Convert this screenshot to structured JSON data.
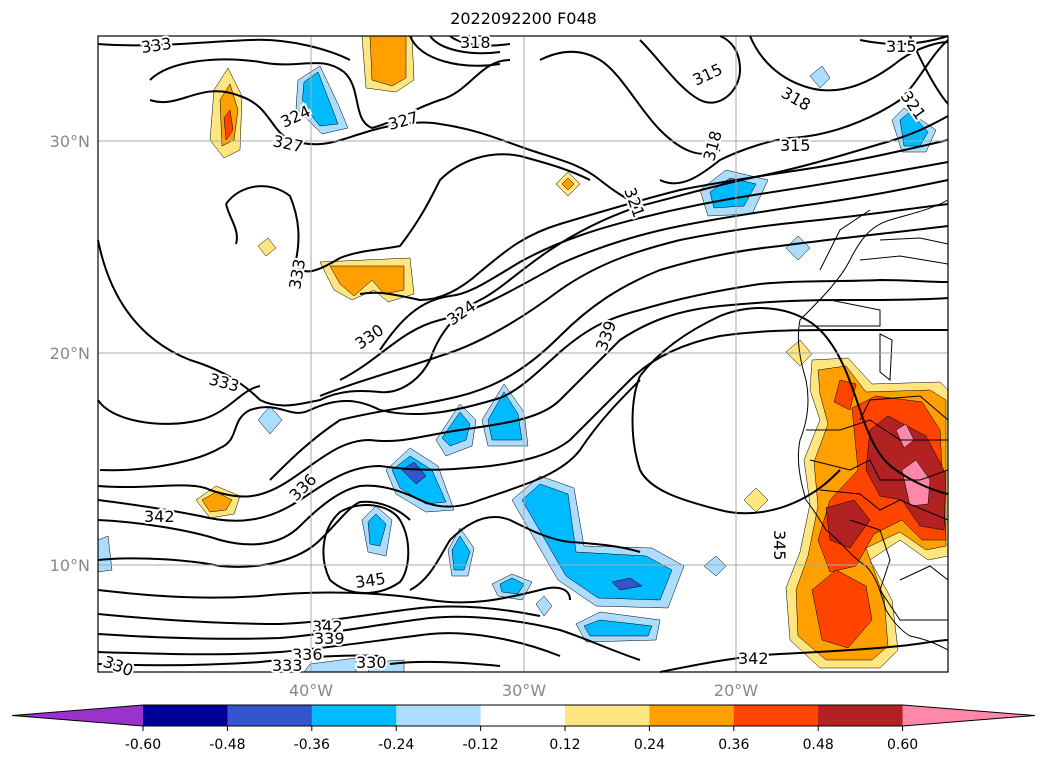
{
  "title": "2022092200 F048",
  "lat_labels": [
    "30°N",
    "20°N",
    "10°N"
  ],
  "lon_labels": [
    "40°W",
    "30°W",
    "20°W"
  ],
  "contour_labels": [
    "333",
    "318",
    "324",
    "327",
    "327",
    "315",
    "318",
    "318",
    "321",
    "315",
    "315",
    "321",
    "333",
    "324",
    "330",
    "339",
    "333",
    "336",
    "342",
    "345",
    "345",
    "342",
    "339",
    "336",
    "333",
    "330",
    "330",
    "342"
  ],
  "colorbar": {
    "ticks": [
      "-0.60",
      "-0.48",
      "-0.36",
      "-0.24",
      "-0.12",
      "0.12",
      "0.24",
      "0.36",
      "0.48",
      "0.60"
    ],
    "colors": [
      "#9933cc",
      "#000099",
      "#3355cc",
      "#00bbff",
      "#aaddff",
      "#ffffff",
      "#ffe680",
      "#ffa000",
      "#ff4400",
      "#b22222",
      "#ff88aa"
    ]
  },
  "colors": {
    "grid": "#aaaaaa",
    "contour": "#000000",
    "coast": "#000000"
  }
}
